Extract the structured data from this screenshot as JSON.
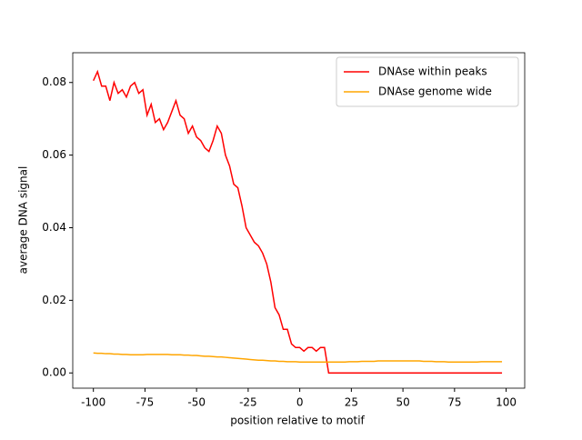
{
  "chart_data": {
    "type": "line",
    "xlabel": "position relative to motif",
    "ylabel": "average DNA signal",
    "x": [
      -100,
      -98,
      -96,
      -94,
      -92,
      -90,
      -88,
      -86,
      -84,
      -82,
      -80,
      -78,
      -76,
      -74,
      -72,
      -70,
      -68,
      -66,
      -64,
      -62,
      -60,
      -58,
      -56,
      -54,
      -52,
      -50,
      -48,
      -46,
      -44,
      -42,
      -40,
      -38,
      -36,
      -34,
      -32,
      -30,
      -28,
      -26,
      -24,
      -22,
      -20,
      -18,
      -16,
      -14,
      -12,
      -10,
      -8,
      -6,
      -4,
      -2,
      0,
      2,
      4,
      6,
      8,
      10,
      12,
      14,
      16,
      18,
      20,
      22,
      24,
      26,
      28,
      30,
      32,
      34,
      36,
      38,
      40,
      42,
      44,
      46,
      48,
      50,
      52,
      54,
      56,
      58,
      60,
      62,
      64,
      66,
      68,
      70,
      72,
      74,
      76,
      78,
      80,
      82,
      84,
      86,
      88,
      90,
      92,
      94,
      96,
      98
    ],
    "series": [
      {
        "name": "DNAse within peaks",
        "color": "#ff0000",
        "values": [
          0.0805,
          0.083,
          0.079,
          0.079,
          0.075,
          0.08,
          0.077,
          0.078,
          0.076,
          0.079,
          0.08,
          0.077,
          0.078,
          0.071,
          0.074,
          0.069,
          0.07,
          0.067,
          0.069,
          0.072,
          0.075,
          0.071,
          0.07,
          0.066,
          0.068,
          0.065,
          0.064,
          0.062,
          0.061,
          0.064,
          0.068,
          0.066,
          0.06,
          0.057,
          0.052,
          0.051,
          0.046,
          0.04,
          0.038,
          0.036,
          0.035,
          0.033,
          0.03,
          0.025,
          0.018,
          0.016,
          0.012,
          0.012,
          0.008,
          0.007,
          0.007,
          0.006,
          0.007,
          0.007,
          0.006,
          0.007,
          0.007,
          0,
          0,
          0,
          0,
          0,
          0,
          0,
          0,
          0,
          0,
          0,
          0,
          0,
          0,
          0,
          0,
          0,
          0,
          0,
          0,
          0,
          0,
          0,
          0,
          0,
          0,
          0,
          0,
          0,
          0,
          0,
          0,
          0,
          0,
          0,
          0,
          0,
          0,
          0,
          0,
          0,
          0,
          0
        ]
      },
      {
        "name": "DNAse genome wide",
        "color": "#ffa500",
        "values": [
          0.0055,
          0.0054,
          0.0054,
          0.0053,
          0.0053,
          0.0052,
          0.0052,
          0.0051,
          0.0051,
          0.005,
          0.005,
          0.005,
          0.005,
          0.0051,
          0.0051,
          0.0051,
          0.0051,
          0.0051,
          0.0051,
          0.005,
          0.005,
          0.005,
          0.0049,
          0.0049,
          0.0048,
          0.0048,
          0.0047,
          0.0046,
          0.0046,
          0.0045,
          0.0044,
          0.0044,
          0.0043,
          0.0042,
          0.0041,
          0.004,
          0.0039,
          0.0038,
          0.0037,
          0.0036,
          0.0035,
          0.0035,
          0.0034,
          0.0033,
          0.0033,
          0.0032,
          0.0032,
          0.0031,
          0.0031,
          0.0031,
          0.003,
          0.003,
          0.003,
          0.003,
          0.003,
          0.003,
          0.003,
          0.003,
          0.003,
          0.003,
          0.003,
          0.003,
          0.0031,
          0.0031,
          0.0031,
          0.0032,
          0.0032,
          0.0032,
          0.0032,
          0.0033,
          0.0033,
          0.0033,
          0.0033,
          0.0033,
          0.0033,
          0.0033,
          0.0033,
          0.0033,
          0.0033,
          0.0033,
          0.0032,
          0.0032,
          0.0032,
          0.0031,
          0.0031,
          0.0031,
          0.003,
          0.003,
          0.003,
          0.003,
          0.003,
          0.003,
          0.003,
          0.003,
          0.0031,
          0.0031,
          0.0031,
          0.0031,
          0.0031,
          0.0031
        ]
      }
    ],
    "xlim": [
      -110,
      109
    ],
    "ylim": [
      -0.0042,
      0.0882
    ],
    "xticks": [
      -100,
      -75,
      -50,
      -25,
      0,
      25,
      50,
      75,
      100
    ],
    "yticks": [
      {
        "value": 0,
        "label": "0.00"
      },
      {
        "value": 0.02,
        "label": "0.02"
      },
      {
        "value": 0.04,
        "label": "0.04"
      },
      {
        "value": 0.06,
        "label": "0.06"
      },
      {
        "value": 0.08,
        "label": "0.08"
      }
    ],
    "legend": "upper right"
  }
}
